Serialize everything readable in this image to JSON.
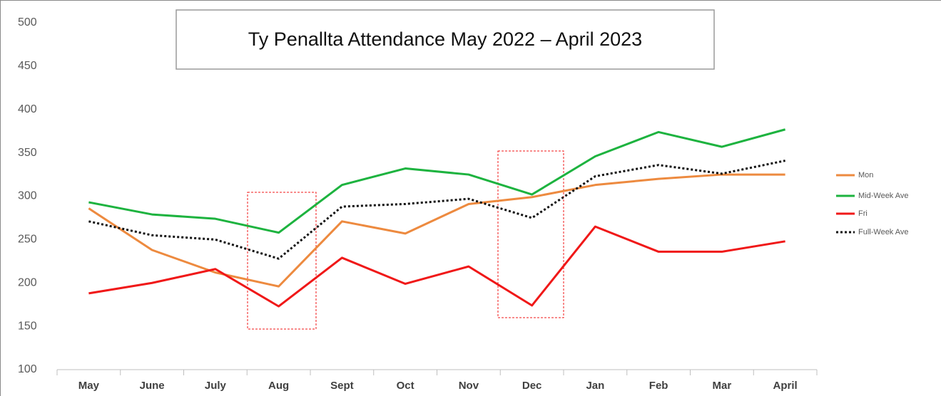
{
  "chart_data": {
    "type": "line",
    "title": "Ty Penallta  Attendance May 2022 – April 2023",
    "categories": [
      "May",
      "June",
      "July",
      "Aug",
      "Sept",
      "Oct",
      "Nov",
      "Dec",
      "Jan",
      "Feb",
      "Mar",
      "April"
    ],
    "series": [
      {
        "name": "Mon",
        "color": "#ed8a3f",
        "style": "solid",
        "values": [
          286,
          238,
          212,
          196,
          271,
          257,
          291,
          299,
          313,
          320,
          325,
          325
        ]
      },
      {
        "name": "Mid-Week Ave",
        "color": "#1db33f",
        "style": "solid",
        "values": [
          293,
          279,
          274,
          258,
          313,
          332,
          325,
          302,
          346,
          374,
          357,
          377
        ]
      },
      {
        "name": "Fri",
        "color": "#f01818",
        "style": "solid",
        "values": [
          188,
          200,
          216,
          173,
          229,
          199,
          219,
          174,
          265,
          236,
          236,
          248
        ]
      },
      {
        "name": "Full-Week Ave",
        "color": "#111111",
        "style": "dotted",
        "values": [
          271,
          255,
          250,
          228,
          288,
          291,
          297,
          275,
          323,
          336,
          326,
          341
        ]
      }
    ],
    "ylim": [
      100,
      500
    ],
    "yticks": [
      100,
      150,
      200,
      250,
      300,
      350,
      400,
      450,
      500
    ],
    "grid": false,
    "legend": "right"
  }
}
